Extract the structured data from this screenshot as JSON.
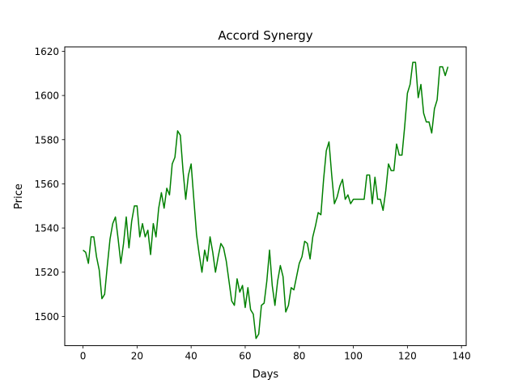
{
  "chart_data": {
    "type": "line",
    "title": "Accord Synergy",
    "xlabel": "Days",
    "ylabel": "Price",
    "xlim": [
      -6.75,
      141.75
    ],
    "ylim": [
      1486.75,
      1622
    ],
    "xticks": [
      0,
      20,
      40,
      60,
      80,
      100,
      120,
      140
    ],
    "yticks": [
      1500,
      1520,
      1540,
      1560,
      1580,
      1600,
      1620
    ],
    "grid": false,
    "legend": "none",
    "series": [
      {
        "color": "#008000",
        "x": [
          0,
          1,
          2,
          3,
          4,
          5,
          6,
          7,
          8,
          9,
          10,
          11,
          12,
          13,
          14,
          15,
          16,
          17,
          18,
          19,
          20,
          21,
          22,
          23,
          24,
          25,
          26,
          27,
          28,
          29,
          30,
          31,
          32,
          33,
          34,
          35,
          36,
          37,
          38,
          39,
          40,
          41,
          42,
          43,
          44,
          45,
          46,
          47,
          48,
          49,
          50,
          51,
          52,
          53,
          54,
          55,
          56,
          57,
          58,
          59,
          60,
          61,
          62,
          63,
          64,
          65,
          66,
          67,
          68,
          69,
          70,
          71,
          72,
          73,
          74,
          75,
          76,
          77,
          78,
          79,
          80,
          81,
          82,
          83,
          84,
          85,
          86,
          87,
          88,
          89,
          90,
          91,
          92,
          93,
          94,
          95,
          96,
          97,
          98,
          99,
          100,
          101,
          102,
          103,
          104,
          105,
          106,
          107,
          108,
          109,
          110,
          111,
          112,
          113,
          114,
          115,
          116,
          117,
          118,
          119,
          120,
          121,
          122,
          123,
          124,
          125,
          126,
          127,
          128,
          129,
          130,
          131,
          132,
          133,
          134,
          135
        ],
        "values": [
          1530,
          1529,
          1524,
          1536,
          1536,
          1527,
          1521,
          1508,
          1510,
          1523,
          1535,
          1542,
          1545,
          1535,
          1524,
          1533,
          1545,
          1531,
          1543,
          1550,
          1550,
          1536,
          1542,
          1536,
          1539,
          1528,
          1542,
          1536,
          1549,
          1556,
          1549,
          1558,
          1555,
          1569,
          1572,
          1584,
          1582,
          1566,
          1553,
          1564,
          1569,
          1553,
          1537,
          1528,
          1520,
          1530,
          1525,
          1536,
          1529,
          1520,
          1527,
          1533,
          1531,
          1525,
          1516,
          1507,
          1505,
          1517,
          1511,
          1514,
          1504,
          1513,
          1503,
          1501,
          1490,
          1492,
          1505,
          1506,
          1516,
          1530,
          1514,
          1505,
          1516,
          1523,
          1518,
          1502,
          1505,
          1513,
          1512,
          1518,
          1524,
          1527,
          1534,
          1533,
          1526,
          1536,
          1541,
          1547,
          1546,
          1562,
          1575,
          1579,
          1564,
          1551,
          1554,
          1559,
          1562,
          1553,
          1555,
          1551,
          1553,
          1553,
          1553,
          1553,
          1553,
          1564,
          1564,
          1551,
          1563,
          1553,
          1553,
          1548,
          1557,
          1569,
          1566,
          1566,
          1578,
          1573,
          1573,
          1586,
          1601,
          1605,
          1615,
          1615,
          1599,
          1605,
          1592,
          1588,
          1588,
          1583,
          1594,
          1598,
          1613,
          1613,
          1609,
          1613
        ]
      }
    ]
  }
}
